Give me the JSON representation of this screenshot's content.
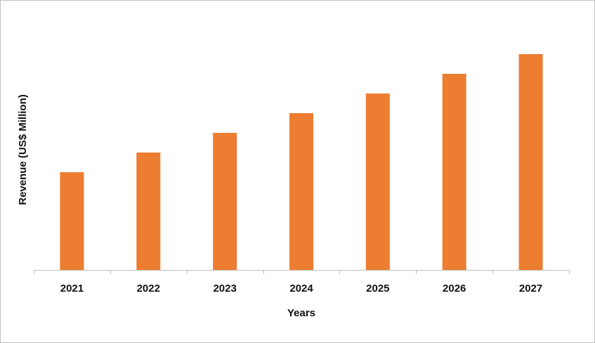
{
  "chart_data": {
    "type": "bar",
    "x_label": "Years",
    "y_label": "Revenue (US$ Million)",
    "categories": [
      "2021",
      "2022",
      "2023",
      "2024",
      "2025",
      "2026",
      "2027"
    ],
    "values": [
      139,
      167,
      195,
      223,
      251,
      279,
      307
    ],
    "color": "#ed7d31"
  }
}
